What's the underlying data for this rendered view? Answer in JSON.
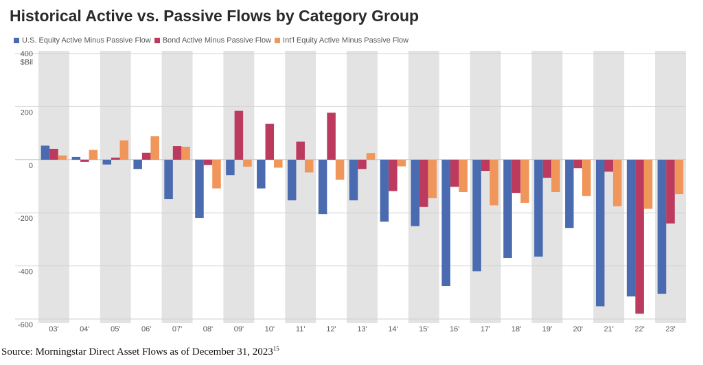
{
  "chart_data": {
    "type": "bar",
    "title": "Historical Active vs. Passive Flows by Category Group",
    "ylabel": "$Bil",
    "xlabel": "",
    "ylim": [
      -600,
      400
    ],
    "yticks": [
      400,
      200,
      0,
      -200,
      -400,
      -600
    ],
    "categories": [
      "03'",
      "04'",
      "05'",
      "06'",
      "07'",
      "08'",
      "09'",
      "10'",
      "11'",
      "12'",
      "13'",
      "14'",
      "15'",
      "16'",
      "17'",
      "18'",
      "19'",
      "20'",
      "21'",
      "22'",
      "23'"
    ],
    "series": [
      {
        "name": "U.S. Equity Active Minus Passive Flow",
        "color": "#4a6bb0",
        "values": [
          53,
          10,
          -18,
          -35,
          -148,
          -220,
          -58,
          -108,
          -153,
          -205,
          -153,
          -233,
          -250,
          -476,
          -420,
          -370,
          -365,
          -257,
          -552,
          -515,
          -505
        ]
      },
      {
        "name": "Bond Active Minus Passive Flow",
        "color": "#bb3a5e",
        "values": [
          41,
          -8,
          8,
          26,
          51,
          -20,
          184,
          135,
          68,
          177,
          -35,
          -118,
          -178,
          -102,
          -42,
          -125,
          -68,
          -32,
          -45,
          -580,
          -240
        ]
      },
      {
        "name": "Int'l Equity Active Minus Passive Flow",
        "color": "#f0965a",
        "values": [
          16,
          37,
          73,
          89,
          49,
          -108,
          -26,
          -30,
          -48,
          -75,
          25,
          -25,
          -145,
          -122,
          -172,
          -163,
          -122,
          -137,
          -175,
          -185,
          -130
        ]
      }
    ],
    "grid": true,
    "legend": "top-left"
  },
  "source": {
    "text": "Source: Morningstar Direct Asset Flows as of December 31, 2023",
    "footnote": "15"
  }
}
